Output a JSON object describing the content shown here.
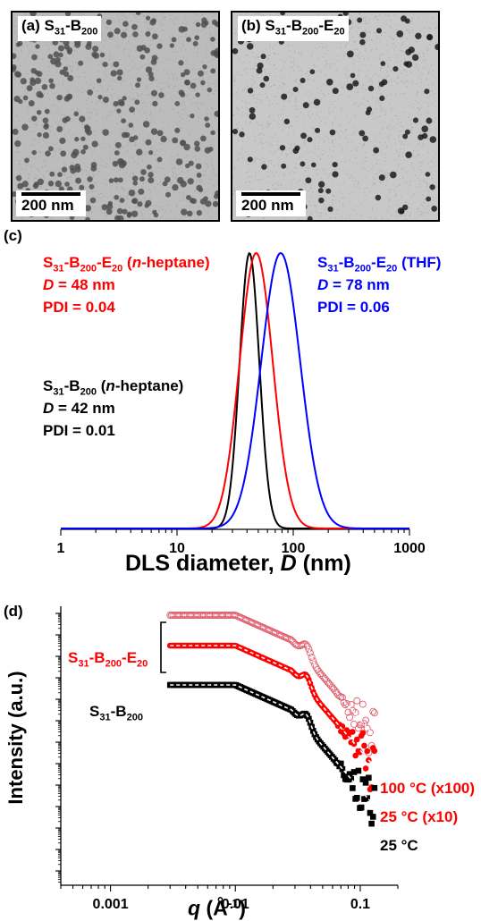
{
  "panel_a": {
    "label": "(a) S",
    "sub1": "31",
    "mid": "-B",
    "sub2": "200",
    "scale_label": "200 nm"
  },
  "panel_b": {
    "label": "(b) S",
    "sub1": "31",
    "mid1": "-B",
    "sub2": "200",
    "mid2": "-E",
    "sub3": "20",
    "scale_label": "200 nm"
  },
  "panel_c": {
    "tag": "(c)",
    "xlabel_prefix": "DLS diameter, ",
    "xlabel_var": "D",
    "xlabel_suffix": " (nm)",
    "ann_red": {
      "name_sub1": "31",
      "name_sub2": "200",
      "name_sub3": "20",
      "solvent": "n",
      "solvent_rest": "-heptane)",
      "d_line": " = 48 nm",
      "pdi": "PDI = 0.04"
    },
    "ann_blue": {
      "name_sub1": "31",
      "name_sub2": "200",
      "name_sub3": "20",
      "solvent": "(THF)",
      "d_line": " = 78 nm",
      "pdi": "PDI = 0.06"
    },
    "ann_black": {
      "name_sub1": "31",
      "name_sub2": "200",
      "solvent": "n",
      "solvent_rest": "-heptane)",
      "d_line": " = 42 nm",
      "pdi": "PDI = 0.01"
    }
  },
  "panel_d": {
    "tag": "(d)",
    "ylabel": "Intensity (a.u.)",
    "xlabel_var": "q",
    "xlabel_unit": " (Å",
    "xlabel_exp": "-1",
    "xlabel_close": ")",
    "label_red_group": {
      "sub1": "31",
      "sub2": "200",
      "sub3": "20"
    },
    "label_black": {
      "sub1": "31",
      "sub2": "200"
    },
    "temp_100": "100 °C (x100)",
    "temp_25x10": "25 °C (x10)",
    "temp_25": "25 °C"
  },
  "colors": {
    "black": "#000000",
    "red": "#ff0000",
    "blue": "#0000ff",
    "pink": "#e06070"
  },
  "chart_data": [
    {
      "type": "line",
      "panel": "c",
      "xscale": "log",
      "xlim": [
        1,
        1000
      ],
      "x_ticks": [
        "1",
        "10",
        "100",
        "1000"
      ],
      "xlabel": "DLS diameter, D (nm)",
      "ylabel": "",
      "series": [
        {
          "name": "S31-B200 (n-heptane)",
          "color": "#000000",
          "peak_D": 42,
          "pdi": 0.01
        },
        {
          "name": "S31-B200-E20 (n-heptane)",
          "color": "#ff0000",
          "peak_D": 48,
          "pdi": 0.04
        },
        {
          "name": "S31-B200-E20 (THF)",
          "color": "#0000ff",
          "peak_D": 78,
          "pdi": 0.06
        }
      ]
    },
    {
      "type": "scatter",
      "panel": "d",
      "xscale": "log",
      "yscale": "log",
      "xlim": [
        0.0004,
        0.2
      ],
      "x_ticks": [
        "0.001",
        "0.01",
        "0.1"
      ],
      "xlabel": "q (Å-1)",
      "ylabel": "Intensity (a.u.)",
      "series": [
        {
          "name": "100 °C (x100)",
          "color": "#e06070",
          "marker": "open-circle",
          "q_range": [
            0.003,
            0.13
          ]
        },
        {
          "name": "25 °C (x10)",
          "color": "#ff0000",
          "marker": "filled-circle",
          "q_range": [
            0.003,
            0.13
          ]
        },
        {
          "name": "25 °C",
          "color": "#000000",
          "marker": "filled-square",
          "q_range": [
            0.003,
            0.13
          ]
        }
      ]
    }
  ]
}
